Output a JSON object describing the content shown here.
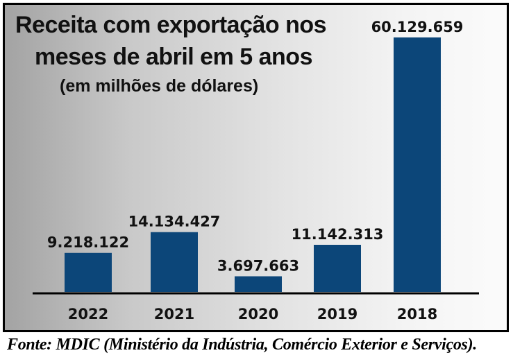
{
  "chart_data": {
    "type": "bar",
    "title": "Receita com exportação nos meses de abril em 5 anos",
    "title_lines": [
      "Receita com exportação nos",
      "meses de abril em 5 anos"
    ],
    "subtitle": "(em milhões de dólares)",
    "categories": [
      "2022",
      "2021",
      "2020",
      "2019",
      "2018"
    ],
    "values": [
      9218122,
      14134427,
      3697663,
      11142313,
      60129659
    ],
    "value_labels": [
      "9.218.122",
      "14.134.427",
      "3.697.663",
      "11.142.313",
      "60.129.659"
    ],
    "xlabel": "",
    "ylabel": "",
    "ylim": [
      0,
      60129659
    ],
    "grid": false,
    "legend": "none",
    "bar_color": "#0c4679"
  },
  "source": "Fonte: MDIC (Ministério da Indústria, Comércio Exterior e Serviços)."
}
